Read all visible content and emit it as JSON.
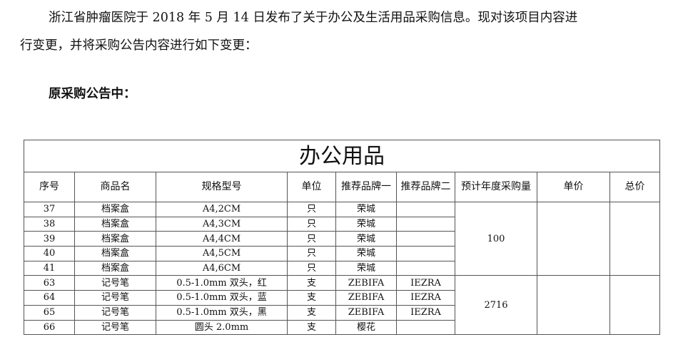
{
  "intro": {
    "line1": "浙江省肿瘤医院于 2018 年 5 月 14 日发布了关于办公及生活用品采购信息。现对该项目内容进",
    "line2": "行变更，并将采购公告内容进行如下变更："
  },
  "section_heading": "原采购公告中：",
  "table": {
    "title": "办公用品",
    "headers": [
      "序号",
      "商品名",
      "规格型号",
      "单位",
      "推荐品牌一",
      "推荐品牌二",
      "预计年度采购量",
      "单价",
      "总价"
    ],
    "groups": [
      {
        "quantity": "100",
        "rows": [
          [
            "37",
            "档案盒",
            "A4,2CM",
            "只",
            "荣城",
            ""
          ],
          [
            "38",
            "档案盒",
            "A4,3CM",
            "只",
            "荣城",
            ""
          ],
          [
            "39",
            "档案盒",
            "A4,4CM",
            "只",
            "荣城",
            ""
          ],
          [
            "40",
            "档案盒",
            "A4,5CM",
            "只",
            "荣城",
            ""
          ],
          [
            "41",
            "档案盒",
            "A4,6CM",
            "只",
            "荣城",
            ""
          ]
        ]
      },
      {
        "quantity": "2716",
        "rows": [
          [
            "63",
            "记号笔",
            "0.5-1.0mm 双头，红",
            "支",
            "ZEBIFA",
            "IEZRA"
          ],
          [
            "64",
            "记号笔",
            "0.5-1.0mm 双头，蓝",
            "支",
            "ZEBIFA",
            "IEZRA"
          ],
          [
            "65",
            "记号笔",
            "0.5-1.0mm 双头，黑",
            "支",
            "ZEBIFA",
            "IEZRA"
          ],
          [
            "66",
            "记号笔",
            "圆头 2.0mm",
            "支",
            "樱花",
            ""
          ]
        ]
      }
    ]
  }
}
